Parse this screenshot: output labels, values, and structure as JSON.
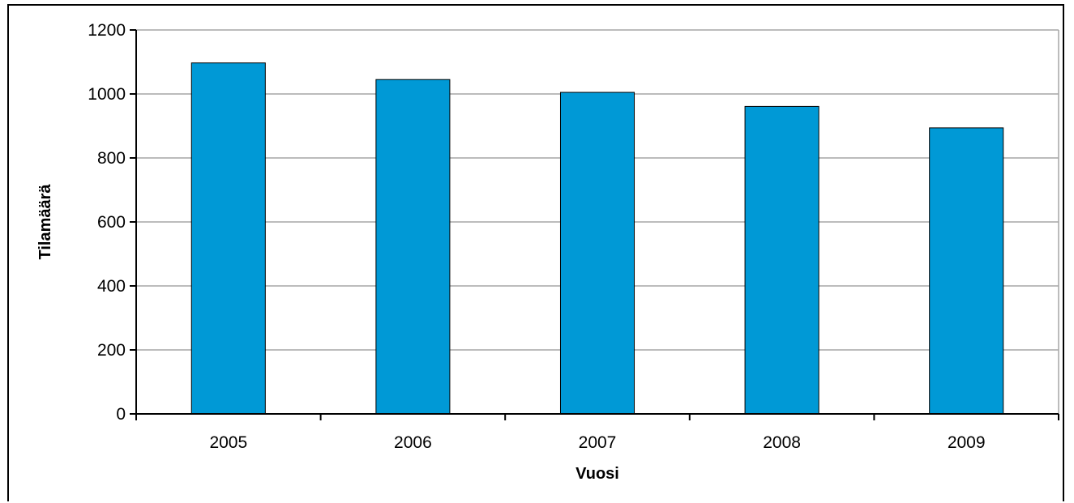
{
  "chart_data": {
    "type": "bar",
    "title": "",
    "xlabel": "Vuosi",
    "ylabel": "Tilamäärä",
    "categories": [
      "2005",
      "2006",
      "2007",
      "2008",
      "2009"
    ],
    "values": [
      1097,
      1045,
      1005,
      961,
      894
    ],
    "ylim": [
      0,
      1200
    ],
    "yticks": [
      0,
      200,
      400,
      600,
      800,
      1000,
      1200
    ],
    "grid": true,
    "legend": "none",
    "bar_color": "#0099D6",
    "grid_color": "#A6A6A6"
  }
}
